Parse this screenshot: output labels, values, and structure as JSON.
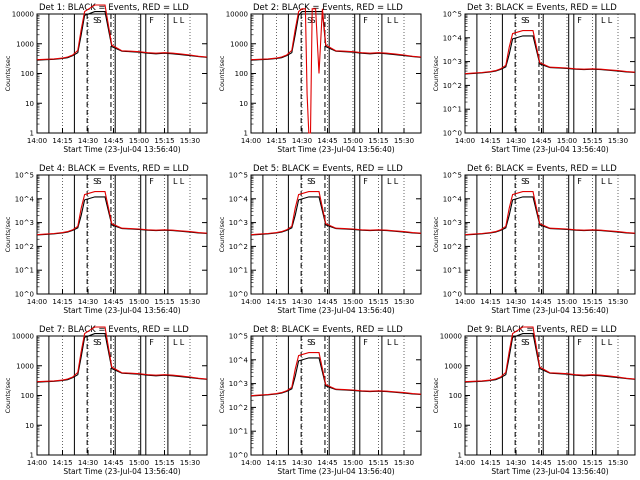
{
  "chart_data": {
    "type": "line",
    "x_tick_labels": [
      "14:00",
      "14:15",
      "14:30",
      "14:45",
      "15:00",
      "15:15",
      "15:30"
    ],
    "x_tick_minutes": [
      0,
      15,
      30,
      45,
      60,
      75,
      90
    ],
    "xlim_minutes": [
      0,
      100
    ],
    "xlabel": "Start Time (23-Jul-04 13:56:40)",
    "ylabel": "Counts/sec",
    "legend_text": [
      "BLACK = Events,",
      "RED = LLD"
    ],
    "colors": {
      "events": "#000000",
      "lld": "#e00000"
    },
    "marker_labels": [
      "S",
      "S",
      "F",
      "L",
      "L"
    ],
    "panels": [
      {
        "title": "Det 1:  BLACK = Events,  RED = LLD",
        "yscale": "log",
        "ylim_exp": [
          0,
          4
        ],
        "ytick_labels": [
          "1",
          "10",
          "100",
          "1000",
          "10000"
        ],
        "x_minutes": [
          0,
          5,
          10,
          15,
          18,
          21,
          24,
          26,
          28,
          34,
          38,
          40,
          44,
          50,
          55,
          60,
          65,
          70,
          75,
          80,
          85,
          90,
          95,
          100
        ],
        "events": [
          280,
          290,
          300,
          320,
          340,
          400,
          500,
          2000,
          9000,
          12000,
          12000,
          12000,
          800,
          560,
          540,
          520,
          480,
          460,
          480,
          460,
          430,
          400,
          370,
          350
        ],
        "lld": [
          290,
          300,
          310,
          330,
          360,
          420,
          600,
          3000,
          12000,
          20000,
          20000,
          20000,
          900,
          580,
          560,
          540,
          500,
          480,
          500,
          480,
          450,
          420,
          380,
          360
        ]
      },
      {
        "title": "Det 2:  BLACK = Events,  RED = LLD",
        "yscale": "log",
        "ylim_exp": [
          0,
          4
        ],
        "ytick_labels": [
          "1",
          "10",
          "100",
          "1000",
          "10000"
        ],
        "x_minutes": [
          0,
          5,
          10,
          15,
          18,
          21,
          24,
          26,
          28,
          30,
          32,
          33,
          34,
          35,
          36,
          38,
          40,
          42,
          44,
          50,
          55,
          60,
          65,
          70,
          75,
          80,
          85,
          90,
          95,
          100
        ],
        "events": [
          280,
          290,
          300,
          320,
          340,
          400,
          500,
          2000,
          9000,
          12000,
          12000,
          12000,
          12000,
          12000,
          12000,
          12000,
          12000,
          12000,
          800,
          560,
          540,
          520,
          480,
          460,
          480,
          460,
          430,
          400,
          370,
          350
        ],
        "lld": [
          290,
          300,
          310,
          330,
          360,
          420,
          600,
          3000,
          12000,
          15000,
          15000,
          20,
          1,
          1,
          15000,
          15000,
          100,
          15000,
          900,
          580,
          560,
          540,
          500,
          480,
          500,
          480,
          450,
          420,
          380,
          360
        ]
      },
      {
        "title": "Det 3:  BLACK = Events,  RED = LLD",
        "yscale": "log",
        "ylim_exp": [
          0,
          5
        ],
        "ytick_labels": [
          "10^0",
          "10^1",
          "10^2",
          "10^3",
          "10^4",
          "10^5"
        ],
        "x_minutes": [
          0,
          5,
          10,
          15,
          18,
          21,
          24,
          26,
          28,
          34,
          38,
          40,
          44,
          50,
          55,
          60,
          65,
          70,
          75,
          80,
          85,
          90,
          95,
          100
        ],
        "events": [
          300,
          320,
          340,
          370,
          400,
          470,
          600,
          2000,
          9000,
          12000,
          12000,
          12000,
          800,
          560,
          540,
          520,
          480,
          460,
          480,
          460,
          430,
          400,
          370,
          350
        ],
        "lld": [
          310,
          330,
          350,
          380,
          420,
          500,
          700,
          4000,
          15000,
          20000,
          20000,
          20000,
          900,
          580,
          560,
          540,
          500,
          480,
          500,
          480,
          450,
          420,
          380,
          360
        ]
      },
      {
        "title": "Det 4:  BLACK = Events,  RED = LLD",
        "yscale": "log",
        "ylim_exp": [
          0,
          5
        ],
        "ytick_labels": [
          "10^0",
          "10^1",
          "10^2",
          "10^3",
          "10^4",
          "10^5"
        ],
        "x_minutes": [
          0,
          5,
          10,
          15,
          18,
          21,
          24,
          26,
          28,
          34,
          38,
          40,
          44,
          50,
          55,
          60,
          65,
          70,
          75,
          80,
          85,
          90,
          95,
          100
        ],
        "events": [
          300,
          320,
          340,
          370,
          400,
          470,
          600,
          2000,
          9000,
          12000,
          12000,
          12000,
          800,
          560,
          540,
          520,
          480,
          460,
          480,
          460,
          430,
          400,
          370,
          350
        ],
        "lld": [
          310,
          330,
          350,
          380,
          420,
          500,
          700,
          4000,
          15000,
          20000,
          20000,
          20000,
          900,
          580,
          560,
          540,
          500,
          480,
          500,
          480,
          450,
          420,
          380,
          360
        ]
      },
      {
        "title": "Det 5:  BLACK = Events,  RED = LLD",
        "yscale": "log",
        "ylim_exp": [
          0,
          5
        ],
        "ytick_labels": [
          "10^0",
          "10^1",
          "10^2",
          "10^3",
          "10^4",
          "10^5"
        ],
        "x_minutes": [
          0,
          5,
          10,
          15,
          18,
          21,
          24,
          26,
          28,
          34,
          38,
          40,
          44,
          50,
          55,
          60,
          65,
          70,
          75,
          80,
          85,
          90,
          95,
          100
        ],
        "events": [
          300,
          320,
          340,
          370,
          400,
          470,
          600,
          2000,
          9000,
          12000,
          12000,
          12000,
          800,
          560,
          540,
          520,
          480,
          460,
          480,
          460,
          430,
          400,
          370,
          350
        ],
        "lld": [
          310,
          330,
          350,
          380,
          420,
          500,
          700,
          4000,
          15000,
          20000,
          20000,
          20000,
          900,
          580,
          560,
          540,
          500,
          480,
          500,
          480,
          450,
          420,
          380,
          360
        ]
      },
      {
        "title": "Det 6:  BLACK = Events,  RED = LLD",
        "yscale": "log",
        "ylim_exp": [
          0,
          5
        ],
        "ytick_labels": [
          "10^0",
          "10^1",
          "10^2",
          "10^3",
          "10^4",
          "10^5"
        ],
        "x_minutes": [
          0,
          5,
          10,
          15,
          18,
          21,
          24,
          26,
          28,
          34,
          38,
          40,
          44,
          50,
          55,
          60,
          65,
          70,
          75,
          80,
          85,
          90,
          95,
          100
        ],
        "events": [
          300,
          320,
          340,
          370,
          400,
          470,
          600,
          2000,
          9000,
          12000,
          12000,
          12000,
          800,
          560,
          540,
          520,
          480,
          460,
          480,
          460,
          430,
          400,
          370,
          350
        ],
        "lld": [
          310,
          330,
          350,
          380,
          420,
          500,
          700,
          4000,
          15000,
          20000,
          20000,
          20000,
          900,
          580,
          560,
          540,
          500,
          480,
          500,
          480,
          450,
          420,
          380,
          360
        ]
      },
      {
        "title": "Det 7:  BLACK = Events,  RED = LLD",
        "yscale": "log",
        "ylim_exp": [
          0,
          4
        ],
        "ytick_labels": [
          "1",
          "10",
          "100",
          "1000",
          "10000"
        ],
        "x_minutes": [
          0,
          5,
          10,
          15,
          18,
          21,
          24,
          26,
          28,
          34,
          38,
          40,
          44,
          50,
          55,
          60,
          65,
          70,
          75,
          80,
          85,
          90,
          95,
          100
        ],
        "events": [
          280,
          290,
          300,
          320,
          340,
          400,
          500,
          2000,
          9000,
          12000,
          12000,
          12000,
          800,
          560,
          540,
          520,
          480,
          460,
          480,
          460,
          430,
          400,
          370,
          350
        ],
        "lld": [
          290,
          300,
          310,
          330,
          360,
          420,
          600,
          3000,
          12000,
          20000,
          20000,
          20000,
          900,
          580,
          560,
          540,
          500,
          480,
          500,
          480,
          450,
          420,
          380,
          360
        ]
      },
      {
        "title": "Det 8:  BLACK = Events,  RED = LLD",
        "yscale": "log",
        "ylim_exp": [
          0,
          5
        ],
        "ytick_labels": [
          "10^0",
          "10^1",
          "10^2",
          "10^3",
          "10^4",
          "10^5"
        ],
        "x_minutes": [
          0,
          5,
          10,
          15,
          18,
          21,
          24,
          26,
          28,
          34,
          38,
          40,
          44,
          50,
          55,
          60,
          65,
          70,
          75,
          80,
          85,
          90,
          95,
          100
        ],
        "events": [
          300,
          320,
          340,
          370,
          400,
          470,
          600,
          2000,
          9000,
          12000,
          12000,
          12000,
          800,
          560,
          540,
          520,
          480,
          460,
          480,
          460,
          430,
          400,
          370,
          350
        ],
        "lld": [
          310,
          330,
          350,
          380,
          420,
          500,
          700,
          4000,
          15000,
          20000,
          20000,
          20000,
          900,
          580,
          560,
          540,
          500,
          480,
          500,
          480,
          450,
          420,
          380,
          360
        ]
      },
      {
        "title": "Det 9:  BLACK = Events,  RED = LLD",
        "yscale": "log",
        "ylim_exp": [
          0,
          4
        ],
        "ytick_labels": [
          "1",
          "10",
          "100",
          "1000",
          "10000"
        ],
        "x_minutes": [
          0,
          5,
          10,
          15,
          18,
          21,
          24,
          26,
          28,
          34,
          38,
          40,
          44,
          50,
          55,
          60,
          65,
          70,
          75,
          80,
          85,
          90,
          95,
          100
        ],
        "events": [
          280,
          290,
          300,
          320,
          340,
          400,
          500,
          2000,
          9000,
          12000,
          12000,
          12000,
          800,
          560,
          540,
          520,
          480,
          460,
          480,
          460,
          430,
          400,
          370,
          350
        ],
        "lld": [
          290,
          300,
          310,
          330,
          360,
          420,
          600,
          3000,
          12000,
          20000,
          20000,
          20000,
          900,
          580,
          560,
          540,
          500,
          480,
          500,
          480,
          450,
          420,
          380,
          360
        ]
      }
    ]
  }
}
